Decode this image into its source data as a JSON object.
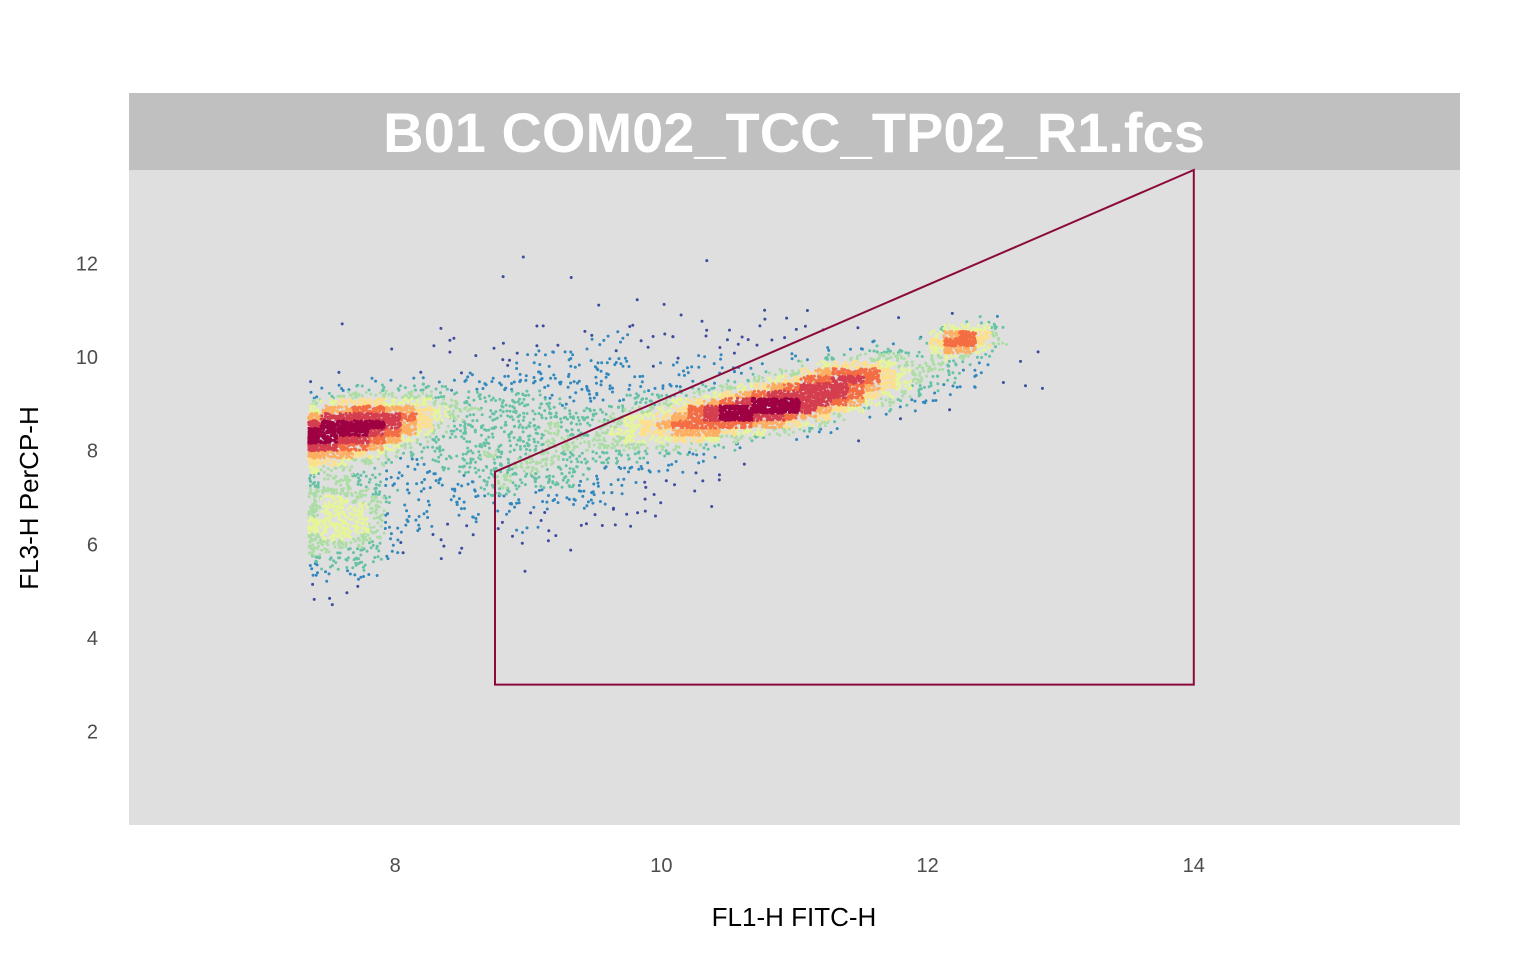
{
  "chart_data": {
    "type": "scatter",
    "title": "B01 COM02_TCC_TP02_R1.fcs",
    "xlabel": "FL1-H FITC-H",
    "ylabel": "FL3-H PerCP-H",
    "xlim": [
      6,
      16
    ],
    "ylim": [
      0,
      14
    ],
    "xticks": [
      8,
      10,
      12,
      14
    ],
    "yticks": [
      2,
      4,
      6,
      8,
      10,
      12
    ],
    "grid": false,
    "density_colormap": [
      "#3f4b9e",
      "#3288bd",
      "#66c2a5",
      "#abdda4",
      "#e6f598",
      "#fee08b",
      "#fdae61",
      "#f46d43",
      "#d53e4f",
      "#9e0142"
    ],
    "panel_background": "#dfdfdf",
    "strip_background": "#c0c0c0",
    "gate_color": "#8b0a3b",
    "populations": [
      {
        "name": "",
        "center": [
          7.65,
          8.4
        ],
        "sd": [
          0.3,
          0.35
        ],
        "count": 1800,
        "rho": 0.3
      },
      {
        "name": "",
        "center": [
          7.9,
          8.7
        ],
        "sd": [
          0.35,
          0.3
        ],
        "count": 700,
        "rho": 0.3
      },
      {
        "name": "",
        "center": [
          7.6,
          6.5
        ],
        "sd": [
          0.2,
          0.6
        ],
        "count": 700,
        "rho": 0.0
      },
      {
        "name": "",
        "center": [
          10.75,
          8.9
        ],
        "sd": [
          0.55,
          0.38
        ],
        "count": 3200,
        "rho": 0.7
      },
      {
        "name": "",
        "center": [
          11.4,
          9.6
        ],
        "sd": [
          0.3,
          0.25
        ],
        "count": 700,
        "rho": 0.5
      },
      {
        "name": "",
        "center": [
          12.25,
          10.35
        ],
        "sd": [
          0.12,
          0.18
        ],
        "count": 450,
        "rho": 0.2
      },
      {
        "name": "",
        "center": [
          9.0,
          8.0
        ],
        "sd": [
          0.5,
          0.8
        ],
        "count": 900,
        "rho": 0.2
      },
      {
        "name": "",
        "center": [
          9.8,
          9.2
        ],
        "sd": [
          0.9,
          0.9
        ],
        "count": 400,
        "rho": 0.1
      }
    ],
    "x_floor": 7.35,
    "gate_polygon": [
      [
        8.75,
        3.0
      ],
      [
        8.75,
        7.55
      ],
      [
        14.0,
        14.0
      ],
      [
        14.0,
        3.0
      ]
    ]
  }
}
